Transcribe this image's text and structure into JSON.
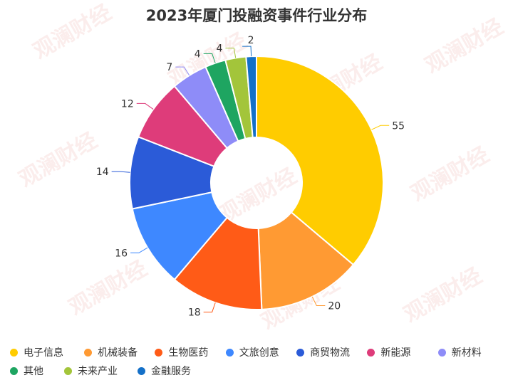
{
  "watermark": "观澜财经",
  "chart_data": {
    "type": "pie",
    "donut": true,
    "title": "2023年厦门投融资事件行业分布",
    "legend_position": "bottom",
    "series": [
      {
        "name": "电子信息",
        "value": 55,
        "color": "#FFCC00"
      },
      {
        "name": "机械装备",
        "value": 20,
        "color": "#FF9A33"
      },
      {
        "name": "生物医药",
        "value": 18,
        "color": "#FF5B17"
      },
      {
        "name": "文旅创意",
        "value": 16,
        "color": "#3E88FF"
      },
      {
        "name": "商贸物流",
        "value": 14,
        "color": "#2B5BD8"
      },
      {
        "name": "新能源",
        "value": 12,
        "color": "#DE3C7A"
      },
      {
        "name": "新材料",
        "value": 7,
        "color": "#8E8CF8"
      },
      {
        "name": "其他",
        "value": 4,
        "color": "#1EA561"
      },
      {
        "name": "未来产业",
        "value": 4,
        "color": "#A3C53A"
      },
      {
        "name": "金融服务",
        "value": 2,
        "color": "#1470C8"
      }
    ]
  }
}
